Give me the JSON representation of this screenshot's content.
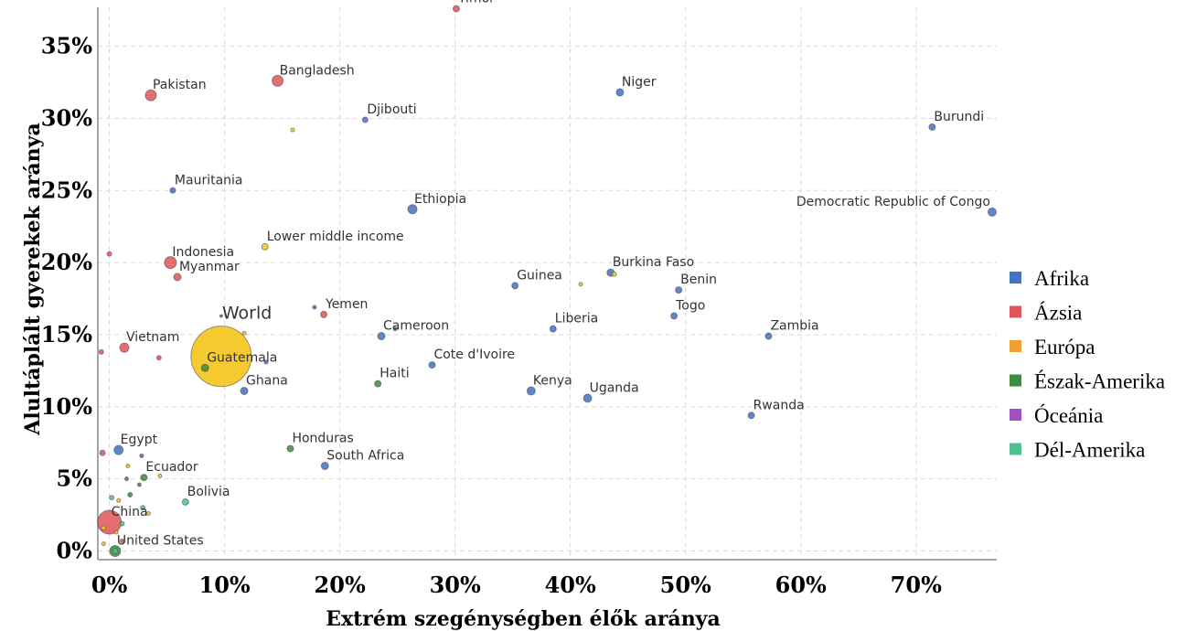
{
  "chart_data": {
    "type": "scatter",
    "xlabel": "Extrém szegénységben élők aránya",
    "ylabel": "Alultáplált gyerekek aránya",
    "xlim": [
      -1,
      77
    ],
    "ylim": [
      -0.6,
      37.7
    ],
    "x_ticks": [
      0,
      10,
      20,
      30,
      40,
      50,
      60,
      70
    ],
    "x_tick_labels": [
      "0%",
      "10%",
      "20%",
      "30%",
      "40%",
      "50%",
      "60%",
      "70%"
    ],
    "y_ticks": [
      0,
      5,
      10,
      15,
      20,
      25,
      30,
      35
    ],
    "y_tick_labels": [
      "0%",
      "5%",
      "10%",
      "15%",
      "20%",
      "25%",
      "30%",
      "35%"
    ],
    "grid": true,
    "legend_position": "right",
    "colors": {
      "Afrika": "#4472c4",
      "Ázsia": "#e0555a",
      "Európa": "#f0a030",
      "Észak-Amerika": "#3e8a3e",
      "Óceánia": "#a050c0",
      "Dél-Amerika": "#50c090",
      "aggregate": "#f5c518"
    },
    "legend": [
      "Afrika",
      "Ázsia",
      "Európa",
      "Észak-Amerika",
      "Óceánia",
      "Dél-Amerika"
    ],
    "points": [
      {
        "label": "Timor",
        "x": 30.1,
        "y": 37.6,
        "group": "Ázsia",
        "size": 3.5
      },
      {
        "label": "Bangladesh",
        "x": 14.6,
        "y": 32.6,
        "group": "Ázsia",
        "size": 6
      },
      {
        "label": "Pakistan",
        "x": 3.6,
        "y": 31.6,
        "group": "Ázsia",
        "size": 6
      },
      {
        "label": "Niger",
        "x": 44.3,
        "y": 31.8,
        "group": "Afrika",
        "size": 4
      },
      {
        "label": "Djibouti",
        "x": 22.2,
        "y": 29.9,
        "group": "Afrika",
        "size": 3
      },
      {
        "label": "Burundi",
        "x": 71.4,
        "y": 29.4,
        "group": "Afrika",
        "size": 3.5
      },
      {
        "label": "",
        "x": 15.9,
        "y": 29.2,
        "group": "aggregate",
        "size": 2
      },
      {
        "label": "Mauritania",
        "x": 5.5,
        "y": 25.0,
        "group": "Afrika",
        "size": 3
      },
      {
        "label": "Ethiopia",
        "x": 26.3,
        "y": 23.7,
        "group": "Afrika",
        "size": 5
      },
      {
        "label": "Democratic Republic of Congo",
        "x": 76.6,
        "y": 23.5,
        "group": "Afrika",
        "size": 4.5
      },
      {
        "label": "Lower middle income",
        "x": 13.5,
        "y": 21.1,
        "group": "aggregate",
        "size": 3.5
      },
      {
        "label": "",
        "x": 0.0,
        "y": 20.6,
        "group": "Ázsia",
        "size": 2.5
      },
      {
        "label": "Indonesia",
        "x": 5.3,
        "y": 20.0,
        "group": "Ázsia",
        "size": 6.5
      },
      {
        "label": "Myanmar",
        "x": 5.9,
        "y": 19.0,
        "group": "Ázsia",
        "size": 4
      },
      {
        "label": "Burkina Faso",
        "x": 43.5,
        "y": 19.3,
        "group": "Afrika",
        "size": 4
      },
      {
        "label": "",
        "x": 43.8,
        "y": 19.2,
        "group": "aggregate",
        "size": 2.5
      },
      {
        "label": "",
        "x": 40.9,
        "y": 18.5,
        "group": "aggregate",
        "size": 2
      },
      {
        "label": "Guinea",
        "x": 35.2,
        "y": 18.4,
        "group": "Afrika",
        "size": 3.5
      },
      {
        "label": "Benin",
        "x": 49.4,
        "y": 18.1,
        "group": "Afrika",
        "size": 3.5
      },
      {
        "label": "",
        "x": 17.8,
        "y": 16.9,
        "group": "Afrika",
        "size": 2
      },
      {
        "label": "Yemen",
        "x": 18.6,
        "y": 16.4,
        "group": "Ázsia",
        "size": 3.5
      },
      {
        "label": "Togo",
        "x": 49.0,
        "y": 16.3,
        "group": "Afrika",
        "size": 3.5
      },
      {
        "label": "World",
        "x": 9.7,
        "y": 13.5,
        "group": "aggregate",
        "size": 33,
        "big": true
      },
      {
        "label": "",
        "x": 9.7,
        "y": 16.3,
        "group": "Afrika",
        "size": 1.5
      },
      {
        "label": "",
        "x": 11.7,
        "y": 15.1,
        "group": "aggregate",
        "size": 2
      },
      {
        "label": "Liberia",
        "x": 38.5,
        "y": 15.4,
        "group": "Afrika",
        "size": 3.5
      },
      {
        "label": "Cameroon",
        "x": 23.6,
        "y": 14.9,
        "group": "Afrika",
        "size": 4
      },
      {
        "label": "",
        "x": 24.8,
        "y": 15.4,
        "group": "Afrika",
        "size": 2
      },
      {
        "label": "Zambia",
        "x": 57.2,
        "y": 14.9,
        "group": "Afrika",
        "size": 3.5
      },
      {
        "label": "Vietnam",
        "x": 1.3,
        "y": 14.1,
        "group": "Ázsia",
        "size": 5
      },
      {
        "label": "",
        "x": -0.7,
        "y": 13.8,
        "group": "Ázsia",
        "size": 2.5
      },
      {
        "label": "",
        "x": 4.3,
        "y": 13.4,
        "group": "Ázsia",
        "size": 2.5
      },
      {
        "label": "",
        "x": 13.6,
        "y": 13.1,
        "group": "Afrika",
        "size": 2
      },
      {
        "label": "Guatemala",
        "x": 8.3,
        "y": 12.7,
        "group": "Észak-Amerika",
        "size": 4
      },
      {
        "label": "Cote d'Ivoire",
        "x": 28.0,
        "y": 12.9,
        "group": "Afrika",
        "size": 3.5
      },
      {
        "label": "Haiti",
        "x": 23.3,
        "y": 11.6,
        "group": "Észak-Amerika",
        "size": 3.5
      },
      {
        "label": "Ghana",
        "x": 11.7,
        "y": 11.1,
        "group": "Afrika",
        "size": 4
      },
      {
        "label": "Kenya",
        "x": 36.6,
        "y": 11.1,
        "group": "Afrika",
        "size": 4.5
      },
      {
        "label": "Uganda",
        "x": 41.5,
        "y": 10.6,
        "group": "Afrika",
        "size": 4.5
      },
      {
        "label": "Rwanda",
        "x": 55.7,
        "y": 9.4,
        "group": "Afrika",
        "size": 3.5
      },
      {
        "label": "Egypt",
        "x": 0.8,
        "y": 7.0,
        "group": "Afrika",
        "size": 5
      },
      {
        "label": "Honduras",
        "x": 15.7,
        "y": 7.1,
        "group": "Észak-Amerika",
        "size": 3.5
      },
      {
        "label": "",
        "x": -0.6,
        "y": 6.8,
        "group": "Ázsia",
        "size": 3
      },
      {
        "label": "",
        "x": 2.8,
        "y": 6.6,
        "group": "Afrika",
        "size": 2
      },
      {
        "label": "South Africa",
        "x": 18.7,
        "y": 5.9,
        "group": "Afrika",
        "size": 4
      },
      {
        "label": "",
        "x": 1.6,
        "y": 5.9,
        "group": "aggregate",
        "size": 2
      },
      {
        "label": "Ecuador",
        "x": 3.0,
        "y": 5.1,
        "group": "Észak-Amerika",
        "size": 3.5
      },
      {
        "label": "",
        "x": 4.4,
        "y": 5.2,
        "group": "aggregate",
        "size": 2
      },
      {
        "label": "",
        "x": 1.5,
        "y": 5.0,
        "group": "Észak-Amerika",
        "size": 2
      },
      {
        "label": "",
        "x": 2.6,
        "y": 4.6,
        "group": "Észak-Amerika",
        "size": 2
      },
      {
        "label": "",
        "x": 1.8,
        "y": 3.9,
        "group": "Észak-Amerika",
        "size": 2.5
      },
      {
        "label": "",
        "x": 0.2,
        "y": 3.7,
        "group": "Dél-Amerika",
        "size": 2.5
      },
      {
        "label": "",
        "x": 0.8,
        "y": 3.5,
        "group": "aggregate",
        "size": 2
      },
      {
        "label": "Bolivia",
        "x": 6.6,
        "y": 3.4,
        "group": "Dél-Amerika",
        "size": 3.5
      },
      {
        "label": "",
        "x": 2.9,
        "y": 3.0,
        "group": "Dél-Amerika",
        "size": 2.5
      },
      {
        "label": "",
        "x": 3.4,
        "y": 2.6,
        "group": "aggregate",
        "size": 2
      },
      {
        "label": "China",
        "x": 0.0,
        "y": 2.0,
        "group": "Ázsia",
        "size": 13
      },
      {
        "label": "",
        "x": 1.1,
        "y": 1.9,
        "group": "Dél-Amerika",
        "size": 2.5
      },
      {
        "label": "",
        "x": 0.6,
        "y": 1.3,
        "group": "aggregate",
        "size": 2
      },
      {
        "label": "",
        "x": -0.5,
        "y": 1.6,
        "group": "aggregate",
        "size": 2.5
      },
      {
        "label": "",
        "x": -0.5,
        "y": 0.5,
        "group": "aggregate",
        "size": 2
      },
      {
        "label": "",
        "x": 1.1,
        "y": 0.7,
        "group": "Ázsia",
        "size": 2
      },
      {
        "label": "United States",
        "x": 0.5,
        "y": 0.0,
        "group": "Észak-Amerika",
        "size": 6
      },
      {
        "label": "",
        "x": 0.5,
        "y": 0.0,
        "group": "Dél-Amerika",
        "size": 3
      }
    ]
  }
}
